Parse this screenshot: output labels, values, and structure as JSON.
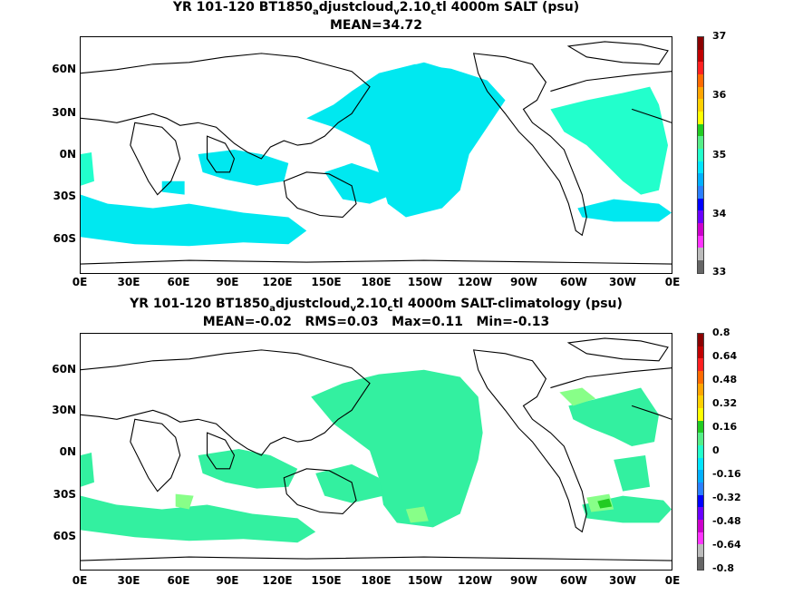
{
  "panels": [
    {
      "title_pre": "YR 101-120 BT1850",
      "title_sub1": "a",
      "title_mid1": "djustcloud",
      "title_sub2": "v",
      "title_mid2": "2.10",
      "title_sub3": "c",
      "title_post": "tl 4000m SALT (psu)",
      "stats": "MEAN=34.72",
      "colorbar_labels": [
        "37",
        "36",
        "35",
        "34",
        "33"
      ],
      "colorbar_colors": [
        "#8b0000",
        "#c00000",
        "#ff2020",
        "#ff6a00",
        "#ffa500",
        "#ffd000",
        "#ffff00",
        "#22cc22",
        "#55ee88",
        "#22ffcc",
        "#00e5ff",
        "#00b0ff",
        "#2a7fff",
        "#0000ff",
        "#6a00ff",
        "#cc00cc",
        "#ff33ff",
        "#bbbbbb",
        "#666666"
      ]
    },
    {
      "title_pre": "YR 101-120 BT1850",
      "title_sub1": "a",
      "title_mid1": "djustcloud",
      "title_sub2": "v",
      "title_mid2": "2.10",
      "title_sub3": "c",
      "title_post": "tl 4000m SALT-climatology (psu)",
      "stats": "MEAN=-0.02   RMS=0.03   Max=0.11   Min=-0.13",
      "colorbar_labels": [
        "0.8",
        "0.64",
        "0.48",
        "0.32",
        "0.16",
        "0",
        "-0.16",
        "-0.32",
        "-0.48",
        "-0.64",
        "-0.8"
      ],
      "colorbar_colors": [
        "#8b0000",
        "#c00000",
        "#ff2020",
        "#ff6a00",
        "#ffa500",
        "#ffd000",
        "#ffff00",
        "#22cc22",
        "#55ee88",
        "#22ffcc",
        "#00e5ff",
        "#00b0ff",
        "#2a7fff",
        "#0000ff",
        "#6a00ff",
        "#cc00cc",
        "#ff33ff",
        "#bbbbbb",
        "#666666"
      ]
    }
  ],
  "lat_labels": [
    "60N",
    "30N",
    "0N",
    "30S",
    "60S"
  ],
  "lon_labels": [
    "0E",
    "30E",
    "60E",
    "90E",
    "120E",
    "150E",
    "180E",
    "150W",
    "120W",
    "90W",
    "60W",
    "30W",
    "0E"
  ],
  "colors": {
    "fill_primary_top": "#00e8f0",
    "fill_secondary_top": "#22ffcc",
    "fill_primary_bottom": "#33f0a0",
    "fill_secondary_bottom": "#88ff88",
    "fill_dark_bottom": "#22cc22"
  }
}
